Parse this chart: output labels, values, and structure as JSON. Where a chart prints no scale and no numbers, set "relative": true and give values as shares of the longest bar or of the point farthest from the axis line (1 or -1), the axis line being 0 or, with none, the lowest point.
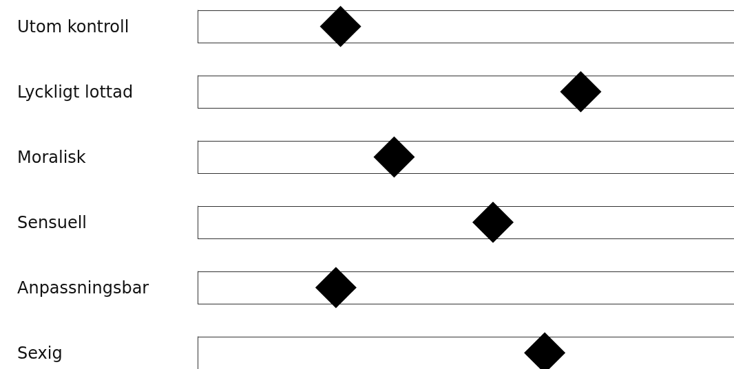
{
  "chart_data": {
    "type": "scatter",
    "relative": true,
    "orientation": "horizontal",
    "marker": "diamond",
    "grid": "y",
    "categories": [
      "Utom kontroll",
      "Lyckligt lottad",
      "Moralisk",
      "Sensuell",
      "Anpassningsbar",
      "Sexig"
    ],
    "values": [
      0.373,
      1,
      0.513,
      0.771,
      0.361,
      0.906
    ],
    "color": "#000000"
  }
}
